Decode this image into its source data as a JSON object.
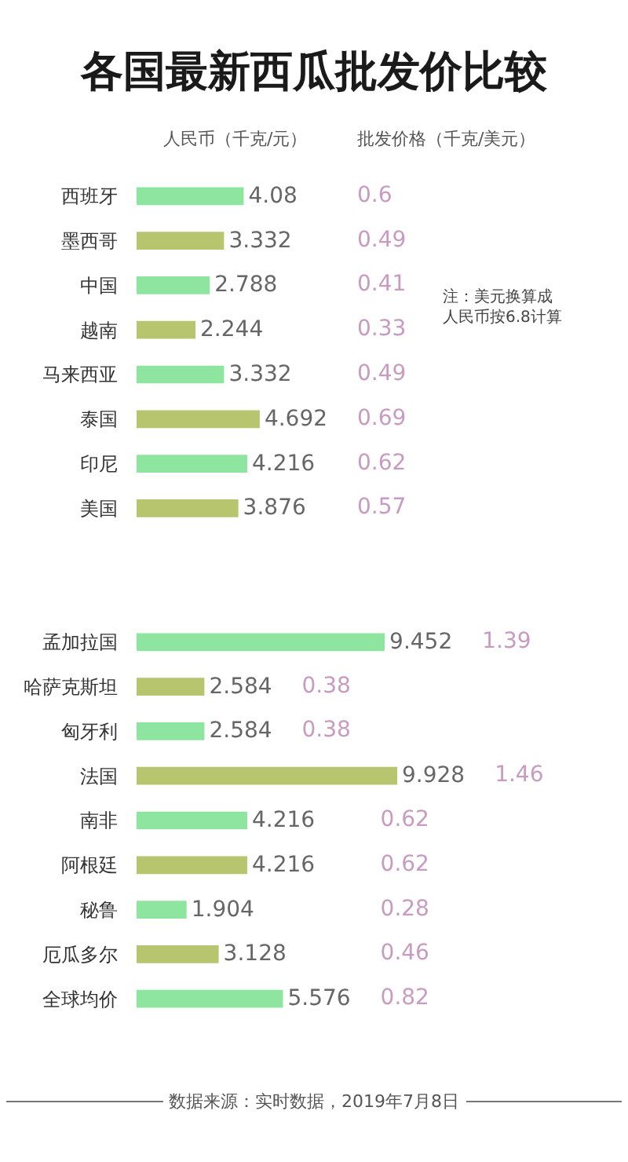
{
  "chart_data": [
    {
      "type": "bar",
      "orientation": "horizontal",
      "title": "各国最新西瓜批发价比较",
      "categories": [
        "西班牙",
        "墨西哥",
        "中国",
        "越南",
        "马来西亚",
        "泰国",
        "印尼",
        "美国",
        null,
        null,
        "孟加拉国",
        "哈萨克斯坦",
        "匈牙利",
        "法国",
        "南非",
        "阿根廷",
        "秘鲁",
        "厄瓜多尔",
        "全球均价"
      ],
      "series": [
        {
          "name": "人民币（千克/元）",
          "colors": [
            "#8ee5a0",
            "#b7c56e",
            "#8ee5a0",
            "#b7c56e",
            "#8ee5a0",
            "#b7c56e",
            "#8ee5a0",
            "#b7c56e",
            "#8ee5a0",
            "#b7c56e",
            "#8ee5a0",
            "#b7c56e",
            "#8ee5a0",
            "#b7c56e",
            "#8ee5a0",
            "#b7c56e",
            "#8ee5a0",
            "#b7c56e",
            "#8ee5a0"
          ],
          "values": [
            4.08,
            3.332,
            2.788,
            2.244,
            3.332,
            4.692,
            4.216,
            3.876,
            null,
            null,
            9.452,
            2.584,
            2.584,
            9.928,
            4.216,
            4.216,
            1.904,
            3.128,
            5.576
          ]
        }
      ],
      "data_labels": true,
      "annotations": [
        "注：美元换算成人民币按6.8计算",
        "数据来源：实时数据，2019年7月8日"
      ]
    },
    {
      "type": "other",
      "title": "批发价格（千克/美元）",
      "color": "#c89bc0",
      "categories": [
        null,
        null,
        null,
        null,
        null,
        null,
        null,
        null,
        null,
        null,
        null,
        null,
        null,
        null,
        null,
        null,
        null,
        null,
        null
      ],
      "values": [
        0.6,
        0.49,
        0.41,
        0.33,
        0.49,
        0.69,
        0.62,
        0.57,
        null,
        null,
        1.39,
        0.38,
        0.38,
        1.46,
        0.62,
        0.62,
        0.28,
        0.46,
        0.82
      ],
      "data_labels": true
    }
  ]
}
